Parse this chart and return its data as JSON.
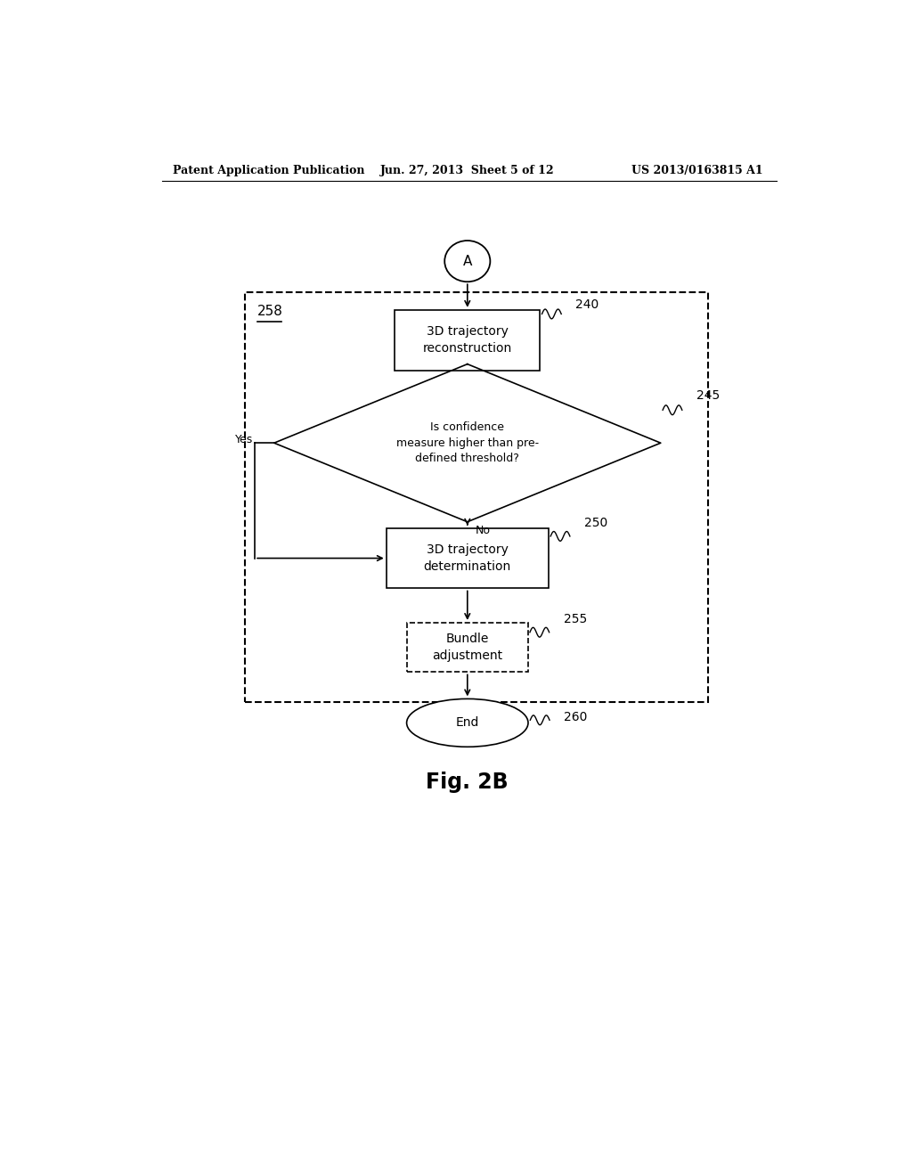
{
  "bg_color": "#ffffff",
  "header_left": "Patent Application Publication",
  "header_mid": "Jun. 27, 2013  Sheet 5 of 12",
  "header_right": "US 2013/0163815 A1",
  "figure_label": "Fig. 2B",
  "node_A_label": "A",
  "box240_label": "3D trajectory\nreconstruction",
  "box240_ref": "240",
  "diamond245_label": "Is confidence\nmeasure higher than pre-\ndefined threshold?",
  "diamond245_ref": "245",
  "yes_label": "Yes",
  "no_label": "No",
  "box250_label": "3D trajectory\ndetermination",
  "box250_ref": "250",
  "box255_label": "Bundle\nadjustment",
  "box255_ref": "255",
  "end_label": "End",
  "end_ref": "260",
  "group_ref": "258",
  "line_color": "#000000",
  "box_bg": "#ffffff",
  "dashed_color": "#000000"
}
